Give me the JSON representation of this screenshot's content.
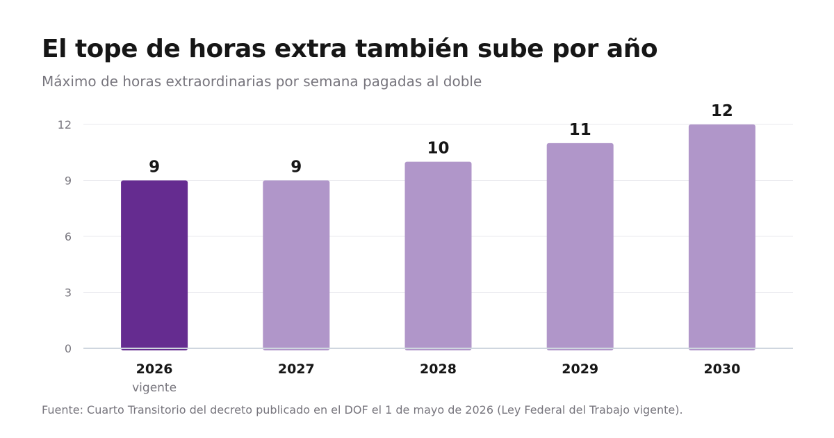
{
  "title": "El tope de horas extra también sube por año",
  "subtitle": "Máximo de horas extraordinarias por semana pagadas al doble",
  "source": "Fuente: Cuarto Transitorio del decreto publicado en el DOF el 1 de mayo de 2026 (Ley Federal del Trabajo vigente).",
  "colors": {
    "highlight": "#652c90",
    "bar": "#b096c9",
    "grid": "#e9e9ee",
    "baseline": "#cfd6df",
    "tick_text": "#77757d",
    "label_text": "#161616"
  },
  "chart_data": {
    "type": "bar",
    "title": "El tope de horas extra también sube por año",
    "subtitle": "Máximo de horas extraordinarias por semana pagadas al doble",
    "xlabel": "",
    "ylabel": "",
    "categories": [
      "2026",
      "2027",
      "2028",
      "2029",
      "2030"
    ],
    "category_notes": [
      "vigente",
      "",
      "",
      "",
      ""
    ],
    "values": [
      9,
      9,
      10,
      11,
      12
    ],
    "data_labels": [
      "9",
      "9",
      "10",
      "11",
      "12"
    ],
    "highlight": [
      true,
      false,
      false,
      false,
      false
    ],
    "ylim": [
      0,
      12
    ],
    "yticks": [
      0,
      3,
      6,
      9,
      12
    ],
    "ytick_labels": [
      "0",
      "3",
      "6",
      "9",
      "12"
    ],
    "grid": true,
    "legend": "none"
  }
}
